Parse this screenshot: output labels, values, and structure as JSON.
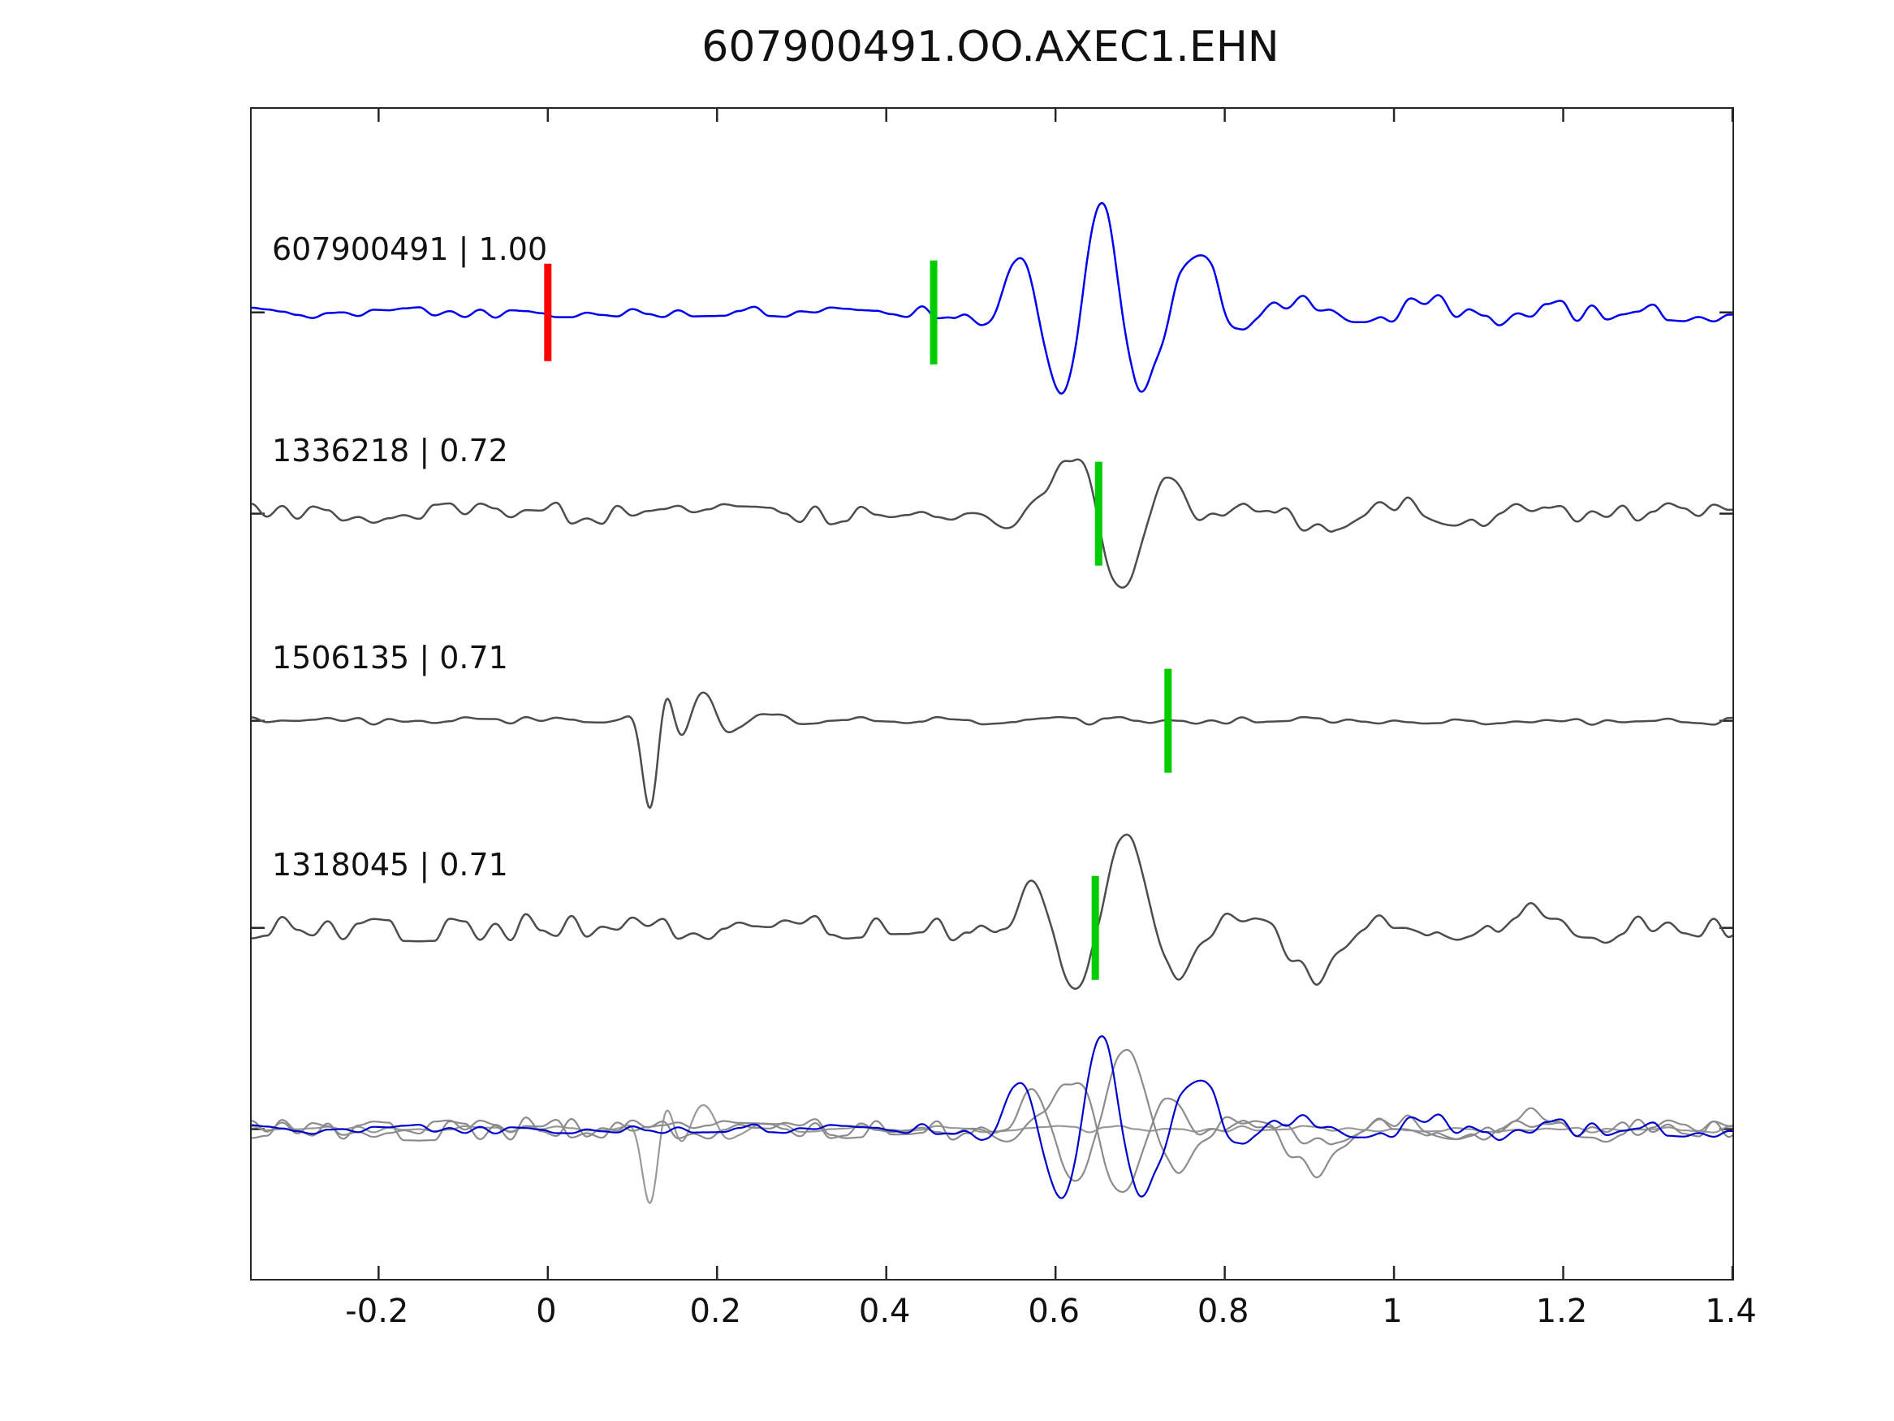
{
  "title": "607900491.OO.AXEC1.EHN",
  "chart_data": {
    "type": "line",
    "title": "607900491.OO.AXEC1.EHN",
    "subtitle": "",
    "xlabel": "",
    "ylabel": "",
    "grid": false,
    "legend_position": "none",
    "xlim": [
      -0.35,
      1.4
    ],
    "x_ticks": [
      -0.2,
      0,
      0.2,
      0.4,
      0.6,
      0.8,
      1,
      1.2,
      1.4
    ],
    "x_tick_labels": [
      "-0.2",
      "0",
      "0.2",
      "0.4",
      "0.6",
      "0.8",
      "1",
      "1.2",
      "1.4"
    ],
    "colors": {
      "reference_trace": "#0000ee",
      "match_trace": "#4d4d4d",
      "overlay_gray": "#8c8c8c",
      "pick_marker": "#00cc00",
      "ref_marker": "#ff0000",
      "axis": "#262626"
    },
    "traces": [
      {
        "id": "607900491",
        "label": "607900491 | 1.00",
        "similarity": 1.0,
        "color": "#0000ee",
        "baseline_frac": 0.174,
        "seed": 11,
        "noise_amp": [
          [
            -0.35,
            7
          ],
          [
            0.4,
            7
          ],
          [
            0.5,
            10
          ],
          [
            0.9,
            14
          ],
          [
            1.4,
            11
          ]
        ],
        "packets": [
          {
            "center": 0.66,
            "width": 0.095,
            "amp": 130,
            "freq": 10,
            "phase": 1.9
          },
          {
            "center": 0.78,
            "width": 0.045,
            "amp": 55,
            "freq": 9,
            "phase": 1.4
          },
          {
            "center": 0.55,
            "width": 0.03,
            "amp": 35,
            "freq": 9,
            "phase": 1.6
          },
          {
            "center": 1.0,
            "width": 0.18,
            "amp": 14,
            "freq": 7,
            "phase": 0
          }
        ],
        "pick_x": 0.456,
        "ref_marker_x": 0.0
      },
      {
        "id": "1336218",
        "label": "1336218 | 0.72",
        "similarity": 0.72,
        "color": "#4d4d4d",
        "baseline_frac": 0.346,
        "seed": 22,
        "noise_amp": [
          [
            -0.35,
            14
          ],
          [
            1.4,
            12
          ]
        ],
        "packets": [
          {
            "center": 0.66,
            "width": 0.09,
            "amp": 100,
            "freq": 8.5,
            "phase": -2.6
          },
          {
            "center": 0.575,
            "width": 0.04,
            "amp": 50,
            "freq": 8,
            "phase": 1.5
          },
          {
            "center": 0.95,
            "width": 0.22,
            "amp": 18,
            "freq": 6,
            "phase": 0
          }
        ],
        "pick_x": 0.651,
        "ref_marker_x": null
      },
      {
        "id": "1506135",
        "label": "1506135 | 0.71",
        "similarity": 0.71,
        "color": "#4d4d4d",
        "baseline_frac": 0.523,
        "seed": 33,
        "noise_amp": [
          [
            -0.35,
            5
          ],
          [
            1.4,
            5
          ]
        ],
        "packets": [
          {
            "center": 0.125,
            "width": 0.02,
            "amp": 120,
            "freq": 15,
            "phase": -0.9
          },
          {
            "center": 0.175,
            "width": 0.03,
            "amp": 40,
            "freq": 12,
            "phase": 0.5
          },
          {
            "center": 0.24,
            "width": 0.04,
            "amp": 14,
            "freq": 9,
            "phase": 0
          }
        ],
        "pick_x": 0.733,
        "ref_marker_x": null
      },
      {
        "id": "1318045",
        "label": "1318045 | 0.71",
        "similarity": 0.71,
        "color": "#4d4d4d",
        "baseline_frac": 0.7,
        "seed": 44,
        "noise_amp": [
          [
            -0.35,
            18
          ],
          [
            1.4,
            14
          ]
        ],
        "packets": [
          {
            "center": 0.67,
            "width": 0.09,
            "amp": 115,
            "freq": 7.5,
            "phase": 1.0
          },
          {
            "center": 0.575,
            "width": 0.05,
            "amp": 45,
            "freq": 8,
            "phase": 1.2
          },
          {
            "center": 0.9,
            "width": 0.05,
            "amp": 55,
            "freq": 5,
            "phase": -1.8
          },
          {
            "center": 1.12,
            "width": 0.15,
            "amp": 20,
            "freq": 6,
            "phase": 0
          }
        ],
        "pick_x": 0.647,
        "ref_marker_x": null
      }
    ],
    "overlay": {
      "baseline_frac": 0.872,
      "scale": 0.85,
      "draw_order": [
        2,
        1,
        3,
        0
      ],
      "member_colors": [
        "#0000cc",
        "#8c8c8c",
        "#999999",
        "#8c8c8c"
      ]
    },
    "markers": {
      "pick_half_height": 64,
      "pick_width": 9,
      "ref_half_height": 60,
      "ref_width": 9
    }
  }
}
